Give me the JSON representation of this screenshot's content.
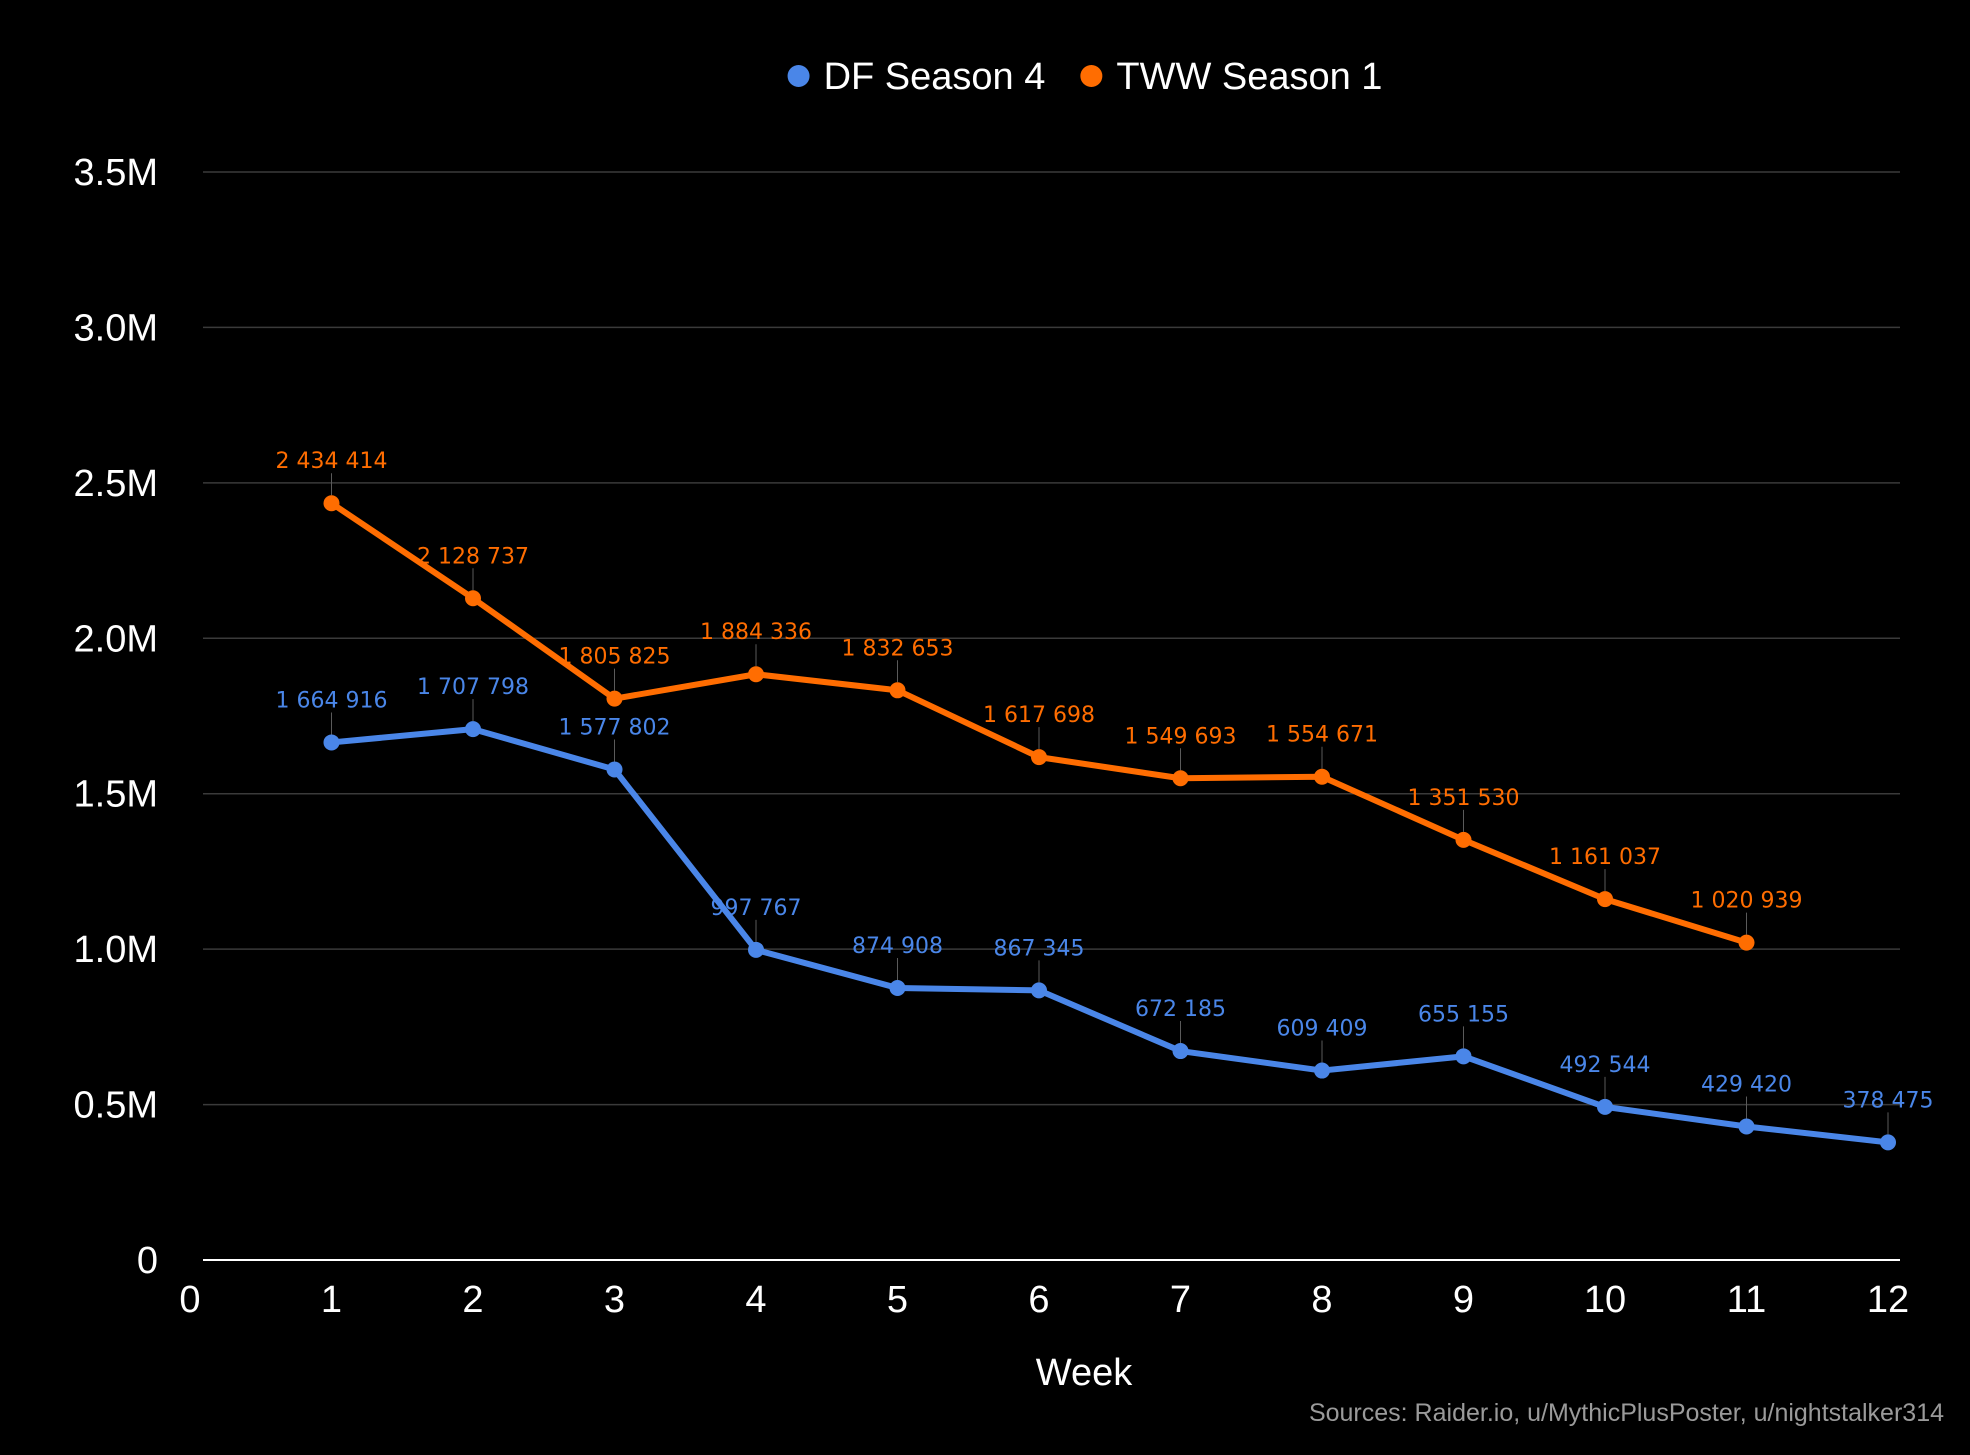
{
  "chart_data": {
    "type": "line",
    "xlabel": "Week",
    "x": [
      1,
      2,
      3,
      4,
      5,
      6,
      7,
      8,
      9,
      10,
      11,
      12
    ],
    "xlim": [
      0,
      12
    ],
    "xticks": [
      "0",
      "1",
      "2",
      "3",
      "4",
      "5",
      "6",
      "7",
      "8",
      "9",
      "10",
      "11",
      "12"
    ],
    "ylim": [
      0,
      3500000
    ],
    "yticks": [
      {
        "value": 0,
        "label": "0"
      },
      {
        "value": 500000,
        "label": "0.5M"
      },
      {
        "value": 1000000,
        "label": "1.0M"
      },
      {
        "value": 1500000,
        "label": "1.5M"
      },
      {
        "value": 2000000,
        "label": "2.0M"
      },
      {
        "value": 2500000,
        "label": "2.5M"
      },
      {
        "value": 3000000,
        "label": "3.0M"
      },
      {
        "value": 3500000,
        "label": "3.5M"
      }
    ],
    "grid": true,
    "legend_position": "top-center",
    "series": [
      {
        "name": "DF Season 4",
        "color": "#4a86e8",
        "x": [
          1,
          2,
          3,
          4,
          5,
          6,
          7,
          8,
          9,
          10,
          11,
          12
        ],
        "values": [
          1664916,
          1707798,
          1577802,
          997767,
          874908,
          867345,
          672185,
          609409,
          655155,
          492544,
          429420,
          378475
        ],
        "labels": [
          "1 664 916",
          "1 707 798",
          "1 577 802",
          "997 767",
          "874 908",
          "867 345",
          "672 185",
          "609 409",
          "655 155",
          "492 544",
          "429 420",
          "378 475"
        ]
      },
      {
        "name": "TWW Season 1",
        "color": "#ff6d01",
        "x": [
          1,
          2,
          3,
          4,
          5,
          6,
          7,
          8,
          9,
          10,
          11
        ],
        "values": [
          2434414,
          2128737,
          1805825,
          1884336,
          1832653,
          1617698,
          1549693,
          1554671,
          1351530,
          1161037,
          1020939
        ],
        "labels": [
          "2 434 414",
          "2 128 737",
          "1 805 825",
          "1 884 336",
          "1 832 653",
          "1 617 698",
          "1 549 693",
          "1 554 671",
          "1 351 530",
          "1 161 037",
          "1 020 939"
        ]
      }
    ]
  },
  "source": "Sources: Raider.io, u/MythicPlusPoster, u/nightstalker314"
}
